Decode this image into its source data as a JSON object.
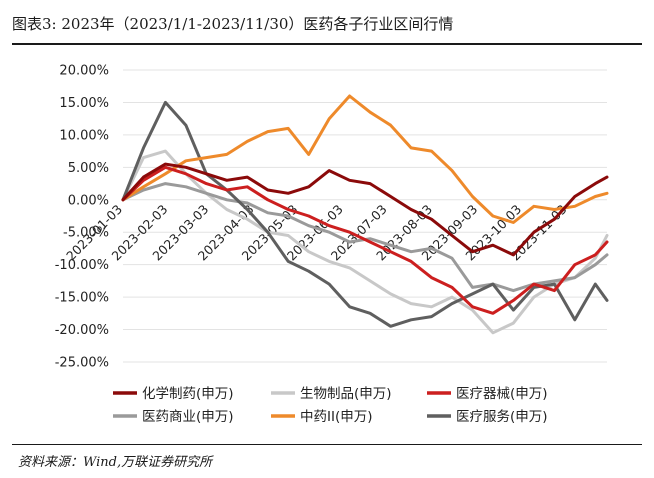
{
  "title": "图表3:  2023年（2023/1/1-2023/11/30）医药各子行业区间行情",
  "source": "资料来源：Wind,万联证券研究所",
  "chart_data": {
    "type": "line",
    "x": [
      "2023-01-03",
      "2023-01-17",
      "2023-02-01",
      "2023-02-15",
      "2023-03-01",
      "2023-03-15",
      "2023-03-29",
      "2023-04-12",
      "2023-04-26",
      "2023-05-10",
      "2023-05-24",
      "2023-06-07",
      "2023-06-21",
      "2023-07-05",
      "2023-07-19",
      "2023-08-02",
      "2023-08-16",
      "2023-08-30",
      "2023-09-13",
      "2023-09-27",
      "2023-10-11",
      "2023-10-25",
      "2023-11-08",
      "2023-11-22",
      "2023-11-30"
    ],
    "x_tick_labels": [
      "2023-01-03",
      "2023-02-03",
      "2023-03-03",
      "2023-04-03",
      "2023-05-03",
      "2023-06-03",
      "2023-07-03",
      "2023-08-03",
      "2023-09-03",
      "2023-10-03",
      "2023-11-03"
    ],
    "y_tick_labels": [
      "20.00%",
      "15.00%",
      "10.00%",
      "5.00%",
      "0.00%",
      "-5.00%",
      "-10.00%",
      "-15.00%",
      "-20.00%",
      "-25.00%"
    ],
    "ylim": [
      -25,
      20
    ],
    "grid": true,
    "legend_position": "bottom",
    "series": [
      {
        "name": "化学制药(申万)",
        "color": "#8b0a0a",
        "width": 3,
        "values": [
          0,
          3.5,
          5.5,
          5.0,
          4.0,
          3.0,
          3.5,
          1.5,
          1.0,
          2.0,
          4.5,
          3.0,
          2.5,
          0.5,
          -1.5,
          -3.0,
          -5.5,
          -8.0,
          -7.0,
          -8.5,
          -5.0,
          -3.0,
          0.5,
          2.5,
          3.5
        ]
      },
      {
        "name": "生物制品(申万)",
        "color": "#c8c8c8",
        "width": 3,
        "values": [
          0,
          6.5,
          7.5,
          4.0,
          1.0,
          -1.5,
          -3.0,
          -5.0,
          -5.5,
          -8.0,
          -9.5,
          -10.5,
          -12.5,
          -14.5,
          -16.0,
          -16.5,
          -15.0,
          -17.0,
          -20.5,
          -19.0,
          -15.0,
          -13.0,
          -12.0,
          -9.0,
          -5.5
        ]
      },
      {
        "name": "医疗器械(申万)",
        "color": "#cc1f1f",
        "width": 3,
        "values": [
          0,
          3.0,
          5.0,
          4.0,
          2.5,
          1.5,
          2.0,
          0.0,
          -1.5,
          -2.5,
          -4.0,
          -5.0,
          -6.5,
          -8.0,
          -9.5,
          -12.0,
          -13.5,
          -16.5,
          -17.5,
          -15.5,
          -13.0,
          -14.0,
          -10.0,
          -8.5,
          -6.5
        ]
      },
      {
        "name": "医药商业(申万)",
        "color": "#9a9a9a",
        "width": 3,
        "values": [
          0,
          1.5,
          2.5,
          2.0,
          1.0,
          0.0,
          -0.5,
          -2.0,
          -2.5,
          -4.0,
          -5.0,
          -6.5,
          -6.0,
          -7.0,
          -8.0,
          -7.5,
          -9.0,
          -13.5,
          -13.0,
          -14.0,
          -13.0,
          -12.5,
          -12.0,
          -10.0,
          -8.5
        ]
      },
      {
        "name": "中药II(申万)",
        "color": "#ee8a2b",
        "width": 3,
        "values": [
          0,
          2.0,
          4.0,
          6.0,
          6.5,
          7.0,
          9.0,
          10.5,
          11.0,
          7.0,
          12.5,
          16.0,
          13.5,
          11.5,
          8.0,
          7.5,
          4.5,
          0.5,
          -2.5,
          -3.5,
          -1.0,
          -1.5,
          -1.0,
          0.5,
          1.0
        ]
      },
      {
        "name": "医疗服务(申万)",
        "color": "#5f5f5f",
        "width": 3,
        "values": [
          0,
          8.0,
          15.0,
          11.5,
          4.0,
          1.5,
          -1.5,
          -5.0,
          -9.5,
          -11.0,
          -13.0,
          -16.5,
          -17.5,
          -19.5,
          -18.5,
          -18.0,
          -16.0,
          -14.5,
          -13.0,
          -17.0,
          -13.5,
          -13.0,
          -18.5,
          -13.0,
          -15.5
        ]
      }
    ]
  }
}
